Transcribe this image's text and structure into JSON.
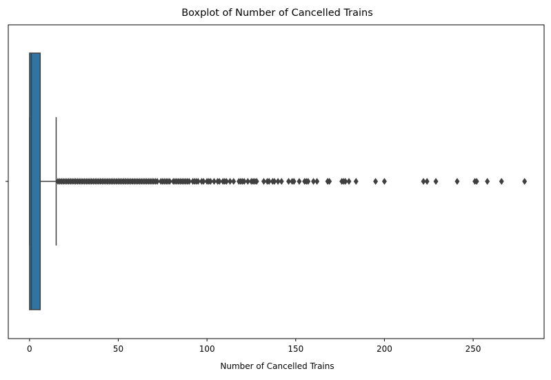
{
  "chart_data": {
    "type": "boxplot",
    "title": "Boxplot of Number of Cancelled Trains",
    "xlabel": "Number of Cancelled Trains",
    "ylabel": "",
    "xlim": [
      -12,
      290
    ],
    "x_ticks": [
      0,
      50,
      100,
      150,
      200,
      250
    ],
    "x_tick_labels": [
      "0",
      "50",
      "100",
      "150",
      "200",
      "250"
    ],
    "orientation": "horizontal",
    "grid": false,
    "box": {
      "min_whisker": 0,
      "q1": 0,
      "median": 1,
      "q3": 6,
      "max_whisker": 15
    },
    "outliers": [
      16,
      17,
      18,
      19,
      20,
      21,
      22,
      23,
      24,
      25,
      26,
      27,
      28,
      29,
      30,
      31,
      32,
      33,
      34,
      35,
      36,
      37,
      38,
      39,
      40,
      41,
      42,
      43,
      44,
      45,
      46,
      47,
      48,
      49,
      50,
      51,
      52,
      53,
      54,
      55,
      56,
      57,
      58,
      59,
      60,
      61,
      62,
      63,
      64,
      65,
      66,
      67,
      68,
      69,
      70,
      71,
      72,
      74,
      75,
      76,
      77,
      78,
      79,
      81,
      82,
      83,
      84,
      85,
      86,
      87,
      88,
      89,
      90,
      92,
      93,
      94,
      95,
      97,
      98,
      100,
      101,
      102,
      104,
      106,
      107,
      109,
      110,
      111,
      113,
      115,
      118,
      119,
      120,
      121,
      123,
      125,
      126,
      127,
      128,
      132,
      134,
      135,
      137,
      138,
      140,
      142,
      146,
      148,
      149,
      152,
      155,
      156,
      157,
      160,
      162,
      168,
      169,
      176,
      177,
      178,
      180,
      184,
      195,
      200,
      222,
      224,
      229,
      241,
      251,
      252,
      258,
      266,
      279
    ],
    "colors": {
      "box_fill": "#3274a1",
      "line": "#3f3f3f",
      "axes": "#000000"
    }
  }
}
